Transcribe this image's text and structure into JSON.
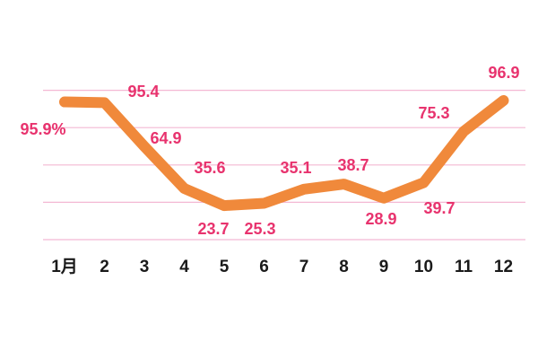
{
  "chart_data": {
    "type": "line",
    "categories": [
      "1月",
      "2",
      "3",
      "4",
      "5",
      "6",
      "7",
      "8",
      "9",
      "10",
      "11",
      "12"
    ],
    "values": [
      95.9,
      95.4,
      64.9,
      35.6,
      23.7,
      25.3,
      35.1,
      38.7,
      28.9,
      39.7,
      75.3,
      96.9
    ],
    "value_labels": [
      "95.9%",
      "95.4",
      "64.9",
      "35.6",
      "23.7",
      "25.3",
      "35.1",
      "38.7",
      "28.9",
      "39.7",
      "75.3",
      "96.9"
    ],
    "color": "#f0893b",
    "label_color": "#e8336e",
    "grid_color": "#f4b8d3",
    "ylim": [
      0,
      105
    ],
    "yticks": [
      0,
      26,
      52,
      78,
      104
    ],
    "grid": true
  }
}
